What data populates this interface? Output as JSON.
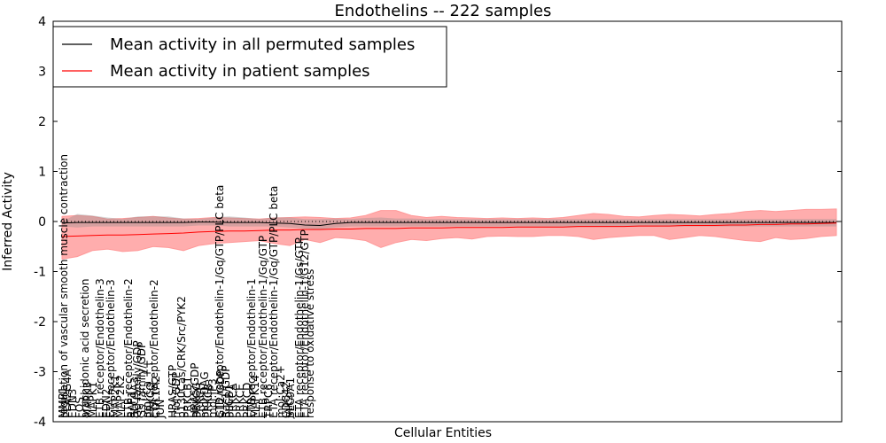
{
  "chart_data": {
    "type": "line",
    "title": "Endothelins -- 222 samples",
    "xlabel": "Cellular Entities",
    "ylabel": "Inferred Activity",
    "ylim": [
      -4,
      4
    ],
    "yticks": [
      -4,
      -3,
      -2,
      -1,
      0,
      1,
      2,
      3,
      4
    ],
    "legend_position": "top-left",
    "series": [
      {
        "name": "Mean activity in all permuted samples",
        "color": "#000000"
      },
      {
        "name": "Mean activity in patient samples",
        "color": "#ff0000"
      }
    ],
    "band_color": "#ff9999",
    "zero_line": true,
    "x": [
      0,
      1,
      2,
      3,
      4,
      5,
      6,
      7,
      8,
      9,
      10,
      11,
      12,
      13,
      14,
      15,
      16,
      17,
      18,
      19,
      20,
      21,
      22,
      23,
      24,
      25,
      26,
      27,
      28,
      29,
      30,
      31,
      32,
      33,
      34,
      35,
      36,
      37,
      38,
      39,
      40,
      41,
      42,
      43,
      44,
      45,
      46,
      47,
      48,
      49,
      50,
      51
    ],
    "labels": [
      "MMP1",
      "regulation of vascular smooth muscle contraction",
      "PLA2G4A",
      "EDN3",
      "FOS",
      "arachidonic acid secretion",
      "MAPK3",
      "MAPK1",
      "ETB receptor/Endothelin-3",
      "EDN2",
      "ETA receptor/Endothelin-3",
      "MAP2K1",
      "MAP2K2",
      "ETB receptor/Endothelin-2",
      "RAF1",
      "SLC9A3",
      "Gq family/GDP",
      "Gs family/GDP",
      "mol:Ca ++",
      "PRKCQ",
      "ETA receptor/Endothelin-2",
      "COL1A2",
      "JUN",
      "HRAS/GTP",
      "mol:GDP",
      "p130Cas/CRK/Src/PYK2",
      "PRKCB1",
      "HRAS/GDP",
      "PRKCG",
      "PRKCH",
      "mol:DAG",
      "PRKCB",
      "mol:IP3",
      "ETB receptor/Endothelin-1/Gq/GTP/PLC beta",
      "G12/GDP",
      "Rac1/GDP",
      "PLCB1",
      "PRKCA",
      "PRKCE",
      "PRKCD",
      "ETB receptor/Endothelin-1",
      "MAPK14",
      "ETB receptor/Endothelin-1/Gq/GTP",
      "TRPC6",
      "ETA receptor/Endothelin-1/Gq/GTP/PLC beta",
      "mol:Ca2+",
      "CDC42",
      "JAK2",
      "SLC9A1",
      "ETA receptor/Endothelin-1/Gs/GTP",
      "ETA receptor/Endothelin-1/G12/GTP",
      "response to oxidative stress"
    ],
    "patient_mean": [
      -0.3,
      -0.29,
      -0.28,
      -0.27,
      -0.27,
      -0.26,
      -0.25,
      -0.24,
      -0.23,
      -0.21,
      -0.2,
      -0.19,
      -0.19,
      -0.18,
      -0.17,
      -0.17,
      -0.16,
      -0.16,
      -0.15,
      -0.15,
      -0.14,
      -0.14,
      -0.14,
      -0.13,
      -0.13,
      -0.13,
      -0.12,
      -0.12,
      -0.12,
      -0.12,
      -0.11,
      -0.11,
      -0.11,
      -0.11,
      -0.1,
      -0.1,
      -0.1,
      -0.1,
      -0.09,
      -0.09,
      -0.09,
      -0.08,
      -0.08,
      -0.08,
      -0.07,
      -0.07,
      -0.06,
      -0.06,
      -0.05,
      -0.05,
      -0.04,
      -0.03
    ],
    "patient_band_upper": [
      0.1,
      0.12,
      0.1,
      0.05,
      0.06,
      0.08,
      0.1,
      0.07,
      0.05,
      0.06,
      0.08,
      0.07,
      0.06,
      0.05,
      0.07,
      0.08,
      0.09,
      0.08,
      0.06,
      0.07,
      0.12,
      0.22,
      0.22,
      0.12,
      0.08,
      0.1,
      0.08,
      0.07,
      0.06,
      0.07,
      0.06,
      0.07,
      0.06,
      0.08,
      0.12,
      0.16,
      0.14,
      0.1,
      0.09,
      0.12,
      0.14,
      0.13,
      0.11,
      0.14,
      0.16,
      0.2,
      0.22,
      0.2,
      0.22,
      0.24,
      0.24,
      0.25
    ],
    "patient_band_lower": [
      -0.75,
      -0.7,
      -0.58,
      -0.55,
      -0.6,
      -0.58,
      -0.5,
      -0.52,
      -0.58,
      -0.48,
      -0.44,
      -0.42,
      -0.4,
      -0.38,
      -0.44,
      -0.48,
      -0.36,
      -0.42,
      -0.32,
      -0.34,
      -0.38,
      -0.52,
      -0.42,
      -0.36,
      -0.38,
      -0.34,
      -0.32,
      -0.35,
      -0.3,
      -0.29,
      -0.3,
      -0.3,
      -0.28,
      -0.28,
      -0.3,
      -0.36,
      -0.32,
      -0.3,
      -0.28,
      -0.28,
      -0.36,
      -0.32,
      -0.28,
      -0.3,
      -0.34,
      -0.38,
      -0.4,
      -0.32,
      -0.36,
      -0.34,
      -0.3,
      -0.28
    ],
    "permuted_mean": [
      -0.03,
      -0.02,
      -0.02,
      -0.02,
      -0.02,
      -0.02,
      -0.02,
      -0.02,
      -0.02,
      -0.01,
      -0.01,
      -0.02,
      -0.02,
      -0.02,
      -0.03,
      -0.04,
      -0.07,
      -0.08,
      -0.04,
      -0.02,
      -0.02,
      -0.02,
      -0.02,
      -0.02,
      -0.02,
      -0.02,
      -0.02,
      -0.02,
      -0.02,
      -0.02,
      -0.02,
      -0.02,
      -0.02,
      -0.02,
      -0.02,
      -0.02,
      -0.02,
      -0.02,
      -0.02,
      -0.02,
      -0.02,
      -0.02,
      -0.02,
      -0.02,
      -0.02,
      -0.02,
      -0.02,
      -0.02,
      -0.02,
      -0.02,
      -0.02,
      -0.02
    ],
    "permuted_band_upper": [
      0.0,
      0.15,
      0.12,
      0.08,
      0.05,
      0.1,
      0.1,
      0.1,
      0.06,
      0.05,
      0.08,
      0.1,
      0.08,
      0.05,
      0.08,
      0.08,
      0.05,
      0.05,
      0.06,
      0.05,
      0.07,
      0.08,
      0.06,
      0.06,
      0.05,
      0.05,
      0.05,
      0.05,
      0.05,
      0.05,
      0.05,
      0.05,
      0.05,
      0.05,
      0.05,
      0.05,
      0.05,
      0.05,
      0.05,
      0.05,
      0.05,
      0.05,
      0.05,
      0.05,
      0.05,
      0.05,
      0.05,
      0.05,
      0.05,
      0.05,
      0.05,
      0.05
    ],
    "permuted_band_lower": [
      -0.1,
      -0.12,
      -0.1,
      -0.1,
      -0.1,
      -0.1,
      -0.1,
      -0.1,
      -0.1,
      -0.08,
      -0.08,
      -0.1,
      -0.1,
      -0.1,
      -0.1,
      -0.12,
      -0.14,
      -0.16,
      -0.12,
      -0.1,
      -0.1,
      -0.1,
      -0.1,
      -0.1,
      -0.1,
      -0.1,
      -0.1,
      -0.1,
      -0.1,
      -0.1,
      -0.1,
      -0.1,
      -0.1,
      -0.1,
      -0.1,
      -0.1,
      -0.1,
      -0.1,
      -0.1,
      -0.1,
      -0.1,
      -0.1,
      -0.1,
      -0.1,
      -0.1,
      -0.1,
      -0.1,
      -0.1,
      -0.1,
      -0.1,
      -0.1,
      -0.1
    ]
  }
}
